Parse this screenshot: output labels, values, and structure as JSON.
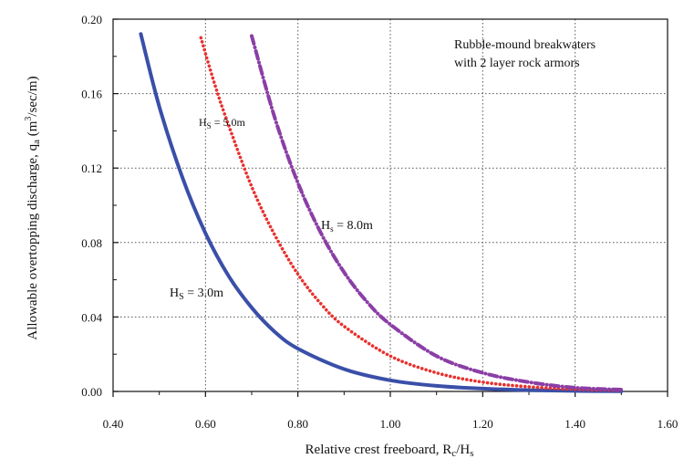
{
  "chart_data": {
    "type": "line",
    "title": "",
    "xlabel": {
      "text": "Relative crest freeboard, R",
      "sub1": "c",
      "mid": "/H",
      "sub2": "s"
    },
    "ylabel": {
      "text": "Allowable overtopping discharge, q",
      "sub": "a",
      "tail1": " (m",
      "sup": "3",
      "tail2": "/sec/m)"
    },
    "xlim": [
      0.4,
      1.6
    ],
    "ylim": [
      0.0,
      0.2
    ],
    "xticks": [
      0.4,
      0.6,
      0.8,
      1.0,
      1.2,
      1.4,
      1.6
    ],
    "xtick_labels": [
      "0.40",
      "0.60",
      "0.80",
      "1.00",
      "1.20",
      "1.40",
      "1.60"
    ],
    "yticks": [
      0.0,
      0.04,
      0.08,
      0.12,
      0.16,
      0.2
    ],
    "ytick_labels": [
      "0.00",
      "0.04",
      "0.08",
      "0.12",
      "0.16",
      "0.20"
    ],
    "grid": true,
    "annotation": {
      "line1": "Rubble-mound breakwaters",
      "line2": "with 2 layer rock armors"
    },
    "series": [
      {
        "label": {
          "main": "H",
          "sub": "S",
          "rest": " = 3.0m"
        },
        "color": "#3a4fa8",
        "style": "solid",
        "x": [
          0.46,
          0.5,
          0.55,
          0.6,
          0.65,
          0.7,
          0.75,
          0.8,
          0.9,
          1.0,
          1.1,
          1.2,
          1.3,
          1.4,
          1.5
        ],
        "y": [
          0.192,
          0.153,
          0.115,
          0.085,
          0.062,
          0.045,
          0.032,
          0.023,
          0.012,
          0.006,
          0.003,
          0.0015,
          0.0007,
          0.0003,
          0.0001
        ]
      },
      {
        "label": {
          "main": "H",
          "sub": "S",
          "rest": " = 5.0m"
        },
        "color": "#e8312e",
        "style": "dotted",
        "x": [
          0.59,
          0.62,
          0.65,
          0.7,
          0.75,
          0.8,
          0.85,
          0.9,
          1.0,
          1.1,
          1.2,
          1.3,
          1.4,
          1.5
        ],
        "y": [
          0.19,
          0.165,
          0.143,
          0.11,
          0.084,
          0.063,
          0.047,
          0.035,
          0.019,
          0.01,
          0.005,
          0.0025,
          0.0012,
          0.0005
        ]
      },
      {
        "label": {
          "main": "H",
          "sub": "s",
          "rest": " = 8.0m"
        },
        "color": "#8b3ea6",
        "style": "dashdot",
        "x": [
          0.7,
          0.75,
          0.8,
          0.85,
          0.9,
          0.95,
          1.0,
          1.1,
          1.2,
          1.3,
          1.4,
          1.5
        ],
        "y": [
          0.191,
          0.147,
          0.112,
          0.085,
          0.064,
          0.048,
          0.036,
          0.019,
          0.01,
          0.005,
          0.002,
          0.001
        ]
      }
    ]
  }
}
